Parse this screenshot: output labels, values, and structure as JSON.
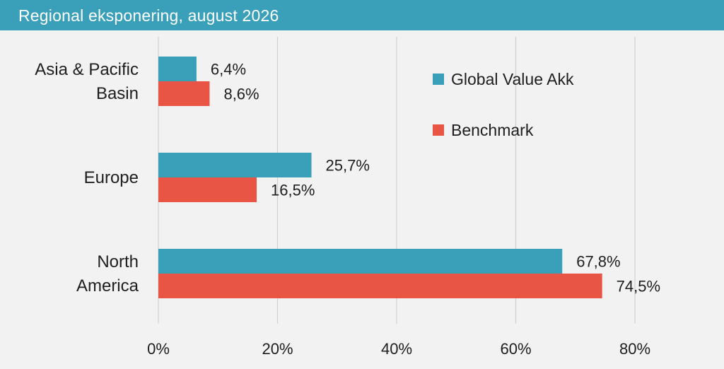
{
  "header": {
    "title": "Regional eksponering, august 2026"
  },
  "colors": {
    "header_bg": "#3aa0b9",
    "series1": "#3aa0b9",
    "series2": "#e95545",
    "grid": "#d0d0d0",
    "background": "#f2f2f2"
  },
  "chart_data": {
    "type": "bar",
    "orientation": "horizontal",
    "title": "Regional eksponering, august 2026",
    "categories": [
      [
        "Asia & Pacific",
        "Basin"
      ],
      [
        "Europe"
      ],
      [
        "North",
        "America"
      ]
    ],
    "series": [
      {
        "name": "Global Value Akk",
        "color": "#3aa0b9",
        "values": [
          6.4,
          25.7,
          67.8
        ],
        "labels": [
          "6,4%",
          "25,7%",
          "67,8%"
        ]
      },
      {
        "name": "Benchmark",
        "color": "#e95545",
        "values": [
          8.6,
          16.5,
          74.5
        ],
        "labels": [
          "8,6%",
          "16,5%",
          "74,5%"
        ]
      }
    ],
    "xlim": [
      0,
      80
    ],
    "xticks": [
      0,
      20,
      40,
      60,
      80
    ],
    "xtick_labels": [
      "0%",
      "20%",
      "40%",
      "60%",
      "80%"
    ],
    "grid": true,
    "legend": {
      "placement": "top-right"
    }
  }
}
